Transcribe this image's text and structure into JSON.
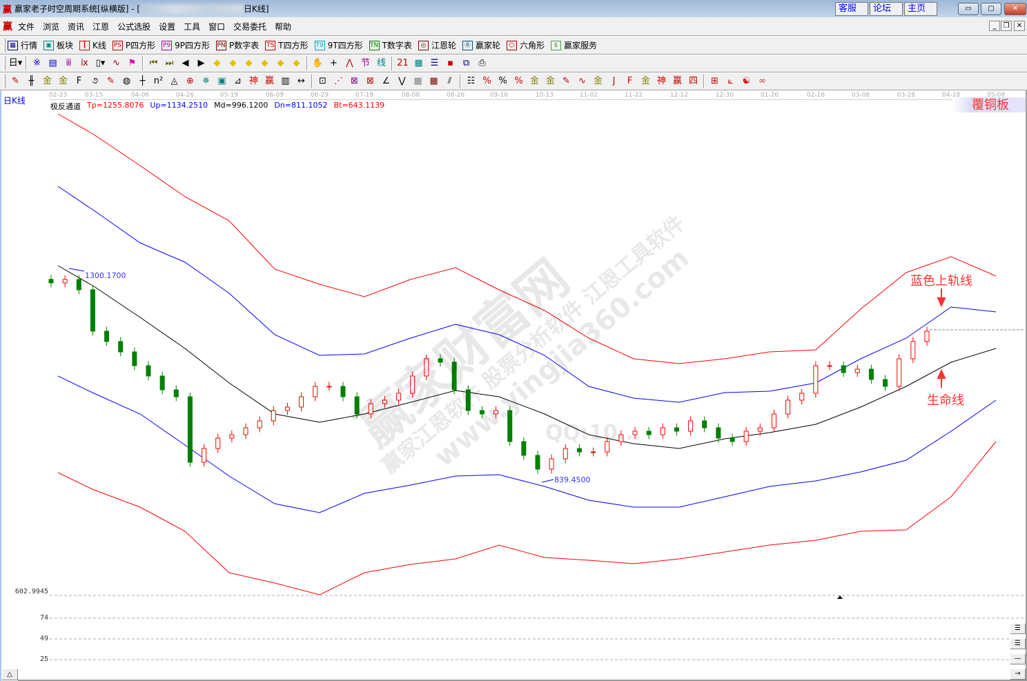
{
  "window": {
    "title_prefix": "赢家老子时空周期系统[纵横版] - [",
    "title_suffix": "日K线]",
    "logo": "赢",
    "links": [
      "客服",
      "论坛",
      "主页"
    ],
    "controls": {
      "minimize": "▭",
      "maximize": "▢",
      "close": "✕"
    }
  },
  "menubar": {
    "logo": "赢",
    "items": [
      "文件",
      "浏览",
      "资讯",
      "江恩",
      "公式选股",
      "设置",
      "工具",
      "窗口",
      "交易委托",
      "帮助"
    ],
    "mdi_controls": {
      "minimize": "_",
      "restore": "❐",
      "close": "✕"
    }
  },
  "toolbar1": [
    {
      "icon": "quotes-table-icon",
      "glyph": "▦",
      "color": "#000080",
      "label": "行情"
    },
    {
      "icon": "sector-blocks-icon",
      "glyph": "▣",
      "color": "#008080",
      "label": "板块"
    },
    {
      "icon": "kline-icon",
      "glyph": "┃",
      "color": "#e00000",
      "label": "K线"
    },
    {
      "icon": "ps-icon",
      "glyph": "PS",
      "color": "#c00000",
      "label": "P四方形"
    },
    {
      "icon": "p9-icon",
      "glyph": "P9",
      "color": "#a000a0",
      "label": "9P四方形"
    },
    {
      "icon": "pn-icon",
      "glyph": "PN",
      "color": "#800000",
      "label": "P数字表"
    },
    {
      "icon": "ts-icon",
      "glyph": "TS",
      "color": "#c00000",
      "label": "T四方形"
    },
    {
      "icon": "t9-icon",
      "glyph": "T9",
      "color": "#00a0c0",
      "label": "9T四方形"
    },
    {
      "icon": "tn-icon",
      "glyph": "TN",
      "color": "#008000",
      "label": "T数字表"
    },
    {
      "icon": "gann-wheel-icon",
      "glyph": "◎",
      "color": "#800000",
      "label": "江恩轮"
    },
    {
      "icon": "big-wheel-icon",
      "glyph": "Ⓑ",
      "color": "#005080",
      "label": "赢家轮"
    },
    {
      "icon": "hexagon-icon",
      "glyph": "⬡",
      "color": "#a00000",
      "label": "六角形"
    },
    {
      "icon": "dollar-icon",
      "glyph": "$",
      "color": "#40a040",
      "label": "赢家服务"
    }
  ],
  "toolbar2": [
    {
      "icon": "period-day-dropdown-icon",
      "glyph": "日▾",
      "color": "#000"
    },
    {
      "icon": "sep"
    },
    {
      "icon": "overlay-icon",
      "glyph": "※",
      "color": "#0000c0"
    },
    {
      "icon": "notes-icon",
      "glyph": "▤",
      "color": "#0000c0"
    },
    {
      "icon": "chart-3-icon",
      "glyph": "ⅲ",
      "color": "#a000a0"
    },
    {
      "icon": "chart-9-icon",
      "glyph": "ⅸ",
      "color": "#a00000"
    },
    {
      "icon": "candle-dropdown-icon",
      "glyph": "▯▾",
      "color": "#000"
    },
    {
      "icon": "indicator-icon",
      "glyph": "∿",
      "color": "#a00000"
    },
    {
      "icon": "flag-icon",
      "glyph": "⚑",
      "color": "#e000a0"
    },
    {
      "icon": "sep"
    },
    {
      "icon": "first-icon",
      "glyph": "⏮",
      "color": "#606000"
    },
    {
      "icon": "last-icon",
      "glyph": "⏭",
      "color": "#606000"
    },
    {
      "icon": "prev-icon",
      "glyph": "◀",
      "color": "#000"
    },
    {
      "icon": "next-icon",
      "glyph": "▶",
      "color": "#000"
    },
    {
      "icon": "shift-left-icon",
      "glyph": "◆",
      "color": "#e0c000"
    },
    {
      "icon": "shift-right-icon",
      "glyph": "◆",
      "color": "#e0c000"
    },
    {
      "icon": "expand-icon",
      "glyph": "◆",
      "color": "#e0c000"
    },
    {
      "icon": "shrink-icon",
      "glyph": "◆",
      "color": "#e0c000"
    },
    {
      "icon": "zoom-in-icon",
      "glyph": "◆",
      "color": "#e0c000"
    },
    {
      "icon": "zoom-out-icon",
      "glyph": "◆",
      "color": "#e0c000"
    },
    {
      "icon": "sep"
    },
    {
      "icon": "hand-icon",
      "glyph": "✋",
      "color": "#000"
    },
    {
      "icon": "crosshair-icon",
      "glyph": "+",
      "color": "#000"
    },
    {
      "icon": "polyline-icon",
      "glyph": "⋀",
      "color": "#c00000"
    },
    {
      "icon": "section-icon",
      "glyph": "节",
      "color": "#a000a0"
    },
    {
      "icon": "formula-icon",
      "glyph": "线",
      "color": "#008080"
    },
    {
      "icon": "sep"
    },
    {
      "icon": "calendar-icon",
      "glyph": "21",
      "color": "#c00000"
    },
    {
      "icon": "calculator-icon",
      "glyph": "▦",
      "color": "#008080"
    },
    {
      "icon": "report-icon",
      "glyph": "☰",
      "color": "#000080"
    },
    {
      "icon": "save-icon",
      "glyph": "▪",
      "color": "#c00000"
    },
    {
      "icon": "network-icon",
      "glyph": "⧉",
      "color": "#000080"
    },
    {
      "icon": "print-icon",
      "glyph": "⎙",
      "color": "#000"
    }
  ],
  "toolbar3": [
    {
      "icon": "pen-icon",
      "glyph": "✎",
      "color": "#c00000"
    },
    {
      "icon": "parallel-lines-icon",
      "glyph": "╫",
      "color": "#000"
    },
    {
      "icon": "gold-lines-icon",
      "glyph": "金",
      "color": "#808000"
    },
    {
      "icon": "gold-lines-2-icon",
      "glyph": "金",
      "color": "#808000"
    },
    {
      "icon": "fib-icon",
      "glyph": "F",
      "color": "#000"
    },
    {
      "icon": "spiral-icon",
      "glyph": "૭",
      "color": "#000"
    },
    {
      "icon": "marker-icon",
      "glyph": "✎",
      "color": "#c00000"
    },
    {
      "icon": "circle-ruler-icon",
      "glyph": "◍",
      "color": "#000"
    },
    {
      "icon": "time-lines-icon",
      "glyph": "┼",
      "color": "#000"
    },
    {
      "icon": "n2-icon",
      "glyph": "n²",
      "color": "#000"
    },
    {
      "icon": "triangle-icon",
      "glyph": "◬",
      "color": "#000"
    },
    {
      "icon": "target-icon",
      "glyph": "⊕",
      "color": "#c00000"
    },
    {
      "icon": "star-icon",
      "glyph": "✵",
      "color": "#008080"
    },
    {
      "icon": "square-grid-icon",
      "glyph": "▣",
      "color": "#008080"
    },
    {
      "icon": "angle-icon",
      "glyph": "⊿",
      "color": "#000"
    },
    {
      "icon": "shen-icon",
      "glyph": "神",
      "color": "#e00000"
    },
    {
      "icon": "ying-icon",
      "glyph": "赢",
      "color": "#c00000"
    },
    {
      "icon": "ruler-icon",
      "glyph": "▥",
      "color": "#000"
    },
    {
      "icon": "measure-icon",
      "glyph": "↔",
      "color": "#000"
    },
    {
      "icon": "sep"
    },
    {
      "icon": "box-icon",
      "glyph": "⊡",
      "color": "#000"
    },
    {
      "icon": "fan-icon",
      "glyph": "⋰",
      "color": "#c00000"
    },
    {
      "icon": "gann-square-icon",
      "glyph": "⊠",
      "color": "#800080"
    },
    {
      "icon": "gann-fan-icon",
      "glyph": "⊠",
      "color": "#c00000"
    },
    {
      "icon": "angle-lines-icon",
      "glyph": "∠",
      "color": "#000"
    },
    {
      "icon": "wave-icon",
      "glyph": "⋁",
      "color": "#000"
    },
    {
      "icon": "grid-icon",
      "glyph": "▦",
      "color": "#808080"
    },
    {
      "icon": "grid-2-icon",
      "glyph": "▦",
      "color": "#800000"
    },
    {
      "icon": "slant-lines-icon",
      "glyph": "⫽",
      "color": "#000"
    },
    {
      "icon": "sep"
    },
    {
      "icon": "scale-icon",
      "glyph": "☷",
      "color": "#000"
    },
    {
      "icon": "percent-line-icon",
      "glyph": "%",
      "color": "#c00000"
    },
    {
      "icon": "percent-icon",
      "glyph": "%",
      "color": "#000"
    },
    {
      "icon": "percent-levels-icon",
      "glyph": "%",
      "color": "#c00000"
    },
    {
      "icon": "gold-circle-icon",
      "glyph": "金",
      "color": "#808000"
    },
    {
      "icon": "gold-levels-icon",
      "glyph": "金",
      "color": "#808000"
    },
    {
      "icon": "pin-icon",
      "glyph": "✎",
      "color": "#c00000"
    },
    {
      "icon": "wave-levels-icon",
      "glyph": "∿",
      "color": "#c00000"
    },
    {
      "icon": "gold-box-icon",
      "glyph": "金",
      "color": "#808000"
    },
    {
      "icon": "j-fan-icon",
      "glyph": "J",
      "color": "#c00000"
    },
    {
      "icon": "f-fan-icon",
      "glyph": "F",
      "color": "#e00000"
    },
    {
      "icon": "gold-fan-icon",
      "glyph": "金",
      "color": "#808000"
    },
    {
      "icon": "shen-fan-icon",
      "glyph": "神",
      "color": "#e00000"
    },
    {
      "icon": "ying-fan-icon",
      "glyph": "赢",
      "color": "#c00000"
    },
    {
      "icon": "four-fan-icon",
      "glyph": "四",
      "color": "#c00000"
    },
    {
      "icon": "sep"
    },
    {
      "icon": "color-grid-icon",
      "glyph": "⊞",
      "color": "#c00000"
    },
    {
      "icon": "axes-icon",
      "glyph": "⟀",
      "color": "#c00000"
    },
    {
      "icon": "yin-yang-icon",
      "glyph": "☯",
      "color": "#e00000"
    },
    {
      "icon": "infinity-icon",
      "glyph": "∞",
      "color": "#c03030"
    }
  ],
  "chart": {
    "period_label": "日K线",
    "indicator": {
      "name": "极反通道",
      "values": [
        {
          "text": "Tp=1255.8076",
          "color": "#ff0000"
        },
        {
          "text": "Up=1134.2510",
          "color": "#0000ff"
        },
        {
          "text": "Md=996.1200",
          "color": "#000000"
        },
        {
          "text": "Dn=811.1052",
          "color": "#0000ff"
        },
        {
          "text": "Bt=643.1139",
          "color": "#ff0000"
        }
      ]
    },
    "high_label": "1300.1700",
    "low_label": "839.4500",
    "bottom_price_label": "602.9945",
    "tag": "覆铜板",
    "annotations": {
      "upper_band": "蓝色上轨线",
      "life_line": "生命线"
    },
    "watermark": [
      "赢家财富网",
      "赢家江恩软件 股票分析软件 江恩工具软件",
      "www.yingjia360.com",
      "QQ:10..."
    ]
  },
  "chart_data": {
    "type": "line",
    "x_tick_labels": [
      "02-23",
      "03-15",
      "04-06",
      "04-26",
      "05-19",
      "06-09",
      "06-29",
      "07-19",
      "08-08",
      "08-26",
      "09-16",
      "10-13",
      "11-02",
      "11-22",
      "12-12",
      "12-30",
      "01-20",
      "02-16",
      "03-08",
      "03-28",
      "04-18",
      "05-08"
    ],
    "series": [
      {
        "name": "Tp",
        "color": "#ff0000",
        "values": [
          1664.4,
          1617.7,
          1547.7,
          1477.6,
          1423.2,
          1314.2,
          1280.0,
          1251.9,
          1290.8,
          1317.3,
          1267.5,
          1220.8,
          1158.6,
          1111.9,
          1101.0,
          1111.9,
          1127.4,
          1132.1,
          1223.9,
          1306.4,
          1342.2,
          1298.6
        ]
      },
      {
        "name": "Up",
        "color": "#0000ff",
        "values": [
          1501.0,
          1446.5,
          1373.3,
          1329.7,
          1259.7,
          1166.3,
          1119.6,
          1122.7,
          1158.6,
          1189.7,
          1166.3,
          1119.6,
          1049.6,
          1023.1,
          1013.8,
          1035.6,
          1038.7,
          1057.4,
          1111.9,
          1158.6,
          1228.6,
          1217.7
        ]
      },
      {
        "name": "Md",
        "color": "#000000",
        "values": [
          1322.0,
          1275.3,
          1205.2,
          1135.2,
          1057.4,
          987.3,
          968.7,
          987.3,
          1013.8,
          1040.3,
          1026.2,
          987.3,
          940.6,
          920.4,
          909.5,
          931.3,
          945.3,
          964.0,
          1002.9,
          1049.6,
          1104.1,
          1135.2
        ]
      },
      {
        "name": "Dn",
        "color": "#0000ff",
        "values": [
          1073.0,
          1034.0,
          987.3,
          917.3,
          847.3,
          785.0,
          764.8,
          808.3,
          827.0,
          847.3,
          850.4,
          823.9,
          792.8,
          777.2,
          777.2,
          800.6,
          823.9,
          836.4,
          856.6,
          883.1,
          948.4,
          1018.5
        ]
      },
      {
        "name": "Bt",
        "color": "#ff0000",
        "values": [
          855.0,
          816.1,
          777.2,
          722.7,
          629.3,
          606.0,
          579.5,
          629.3,
          648.0,
          660.5,
          691.6,
          663.6,
          657.4,
          649.6,
          660.5,
          676.0,
          691.6,
          702.5,
          722.7,
          725.9,
          800.6,
          925.1
        ]
      }
    ],
    "price_close": [
      1283.1,
      1290.8,
      1267.5,
      1174.1,
      1150.8,
      1127.4,
      1096.3,
      1073.0,
      1041.8,
      1026.2,
      878.4,
      909.5,
      932.9,
      940.6,
      956.2,
      971.8,
      995.1,
      1002.9,
      1026.2,
      1049.6,
      1049.6,
      1026.2,
      987.3,
      1010.7,
      1018.5,
      1034.0,
      1073.0,
      1111.9,
      1104.1,
      1041.8,
      995.1,
      987.3,
      995.1,
      925.1,
      894.0,
      862.8,
      886.2,
      909.5,
      901.7,
      901.7,
      925.1,
      940.6,
      948.4,
      940.6,
      956.2,
      948.4,
      971.8,
      956.2,
      932.9,
      925.1,
      948.4,
      956.2,
      987.3,
      1018.5,
      1034.0,
      1096.3,
      1096.3,
      1080.7,
      1088.5,
      1065.2,
      1049.6,
      1111.9,
      1150.8,
      1174.1
    ],
    "up_color": "#ff0000",
    "down_color": "#008000",
    "lower_panel_ticks": [
      "74",
      "49",
      "25"
    ],
    "grid": false
  },
  "side_buttons": [
    "☰",
    "☰",
    "—",
    "→"
  ],
  "scroll_up_button": "△"
}
